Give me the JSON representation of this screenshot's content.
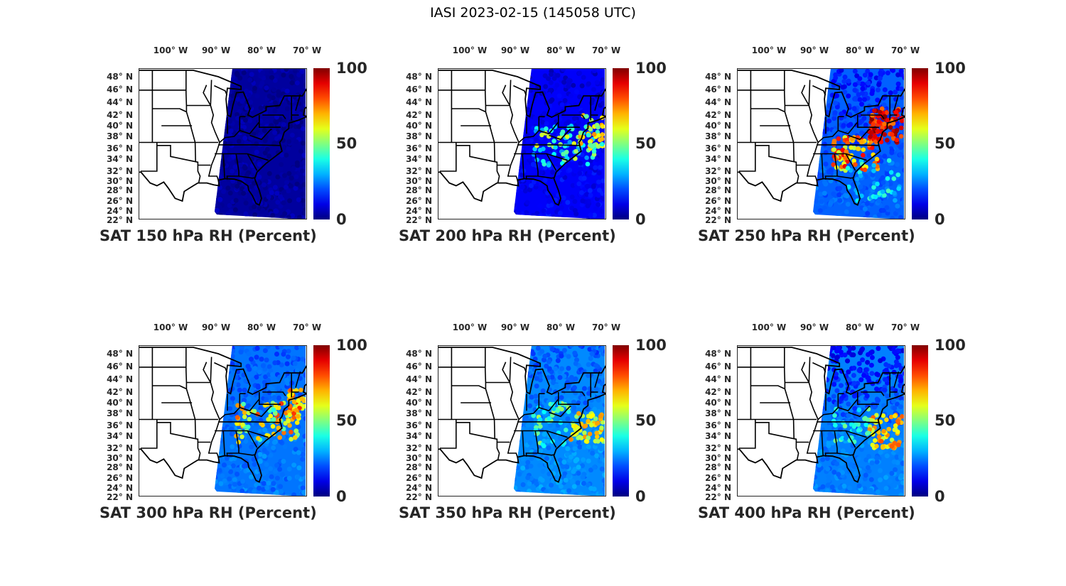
{
  "figure_title": "IASI 2023-02-15 (145058 UTC)",
  "lon_ticks": [
    "100° W",
    "90° W",
    "80° W",
    "70° W"
  ],
  "lon_tick_values": [
    100,
    90,
    80,
    70
  ],
  "lat_ticks": [
    "48° N",
    "46° N",
    "44° N",
    "42° N",
    "40° N",
    "38° N",
    "36° N",
    "34° N",
    "32° N",
    "30° N",
    "28° N",
    "26° N",
    "24° N",
    "22° N"
  ],
  "lat_tick_values": [
    48,
    46,
    44,
    42,
    40,
    38,
    36,
    34,
    32,
    30,
    28,
    26,
    24,
    22
  ],
  "colorbar": {
    "labels": [
      "100",
      "50",
      "0"
    ],
    "range": [
      0,
      100
    ],
    "colormap": "jet"
  },
  "panels": [
    {
      "title": "SAT 150 hPa RH (Percent)",
      "background_rh": 3,
      "north_rh": 3,
      "humid_regions": []
    },
    {
      "title": "SAT 200 hPa RH (Percent)",
      "background_rh": 12,
      "north_rh": 8,
      "humid_regions": [
        {
          "lon": [
            72,
            86
          ],
          "lat": [
            33,
            40
          ],
          "rh": [
            25,
            60
          ],
          "count": 70
        },
        {
          "lon": [
            70.5,
            76
          ],
          "lat": [
            36,
            42
          ],
          "rh": [
            40,
            75
          ],
          "count": 40
        }
      ]
    },
    {
      "title": "SAT 250 hPa RH (Percent)",
      "background_rh": 22,
      "north_rh": 12,
      "humid_regions": [
        {
          "lon": [
            76,
            86
          ],
          "lat": [
            32,
            38
          ],
          "rh": [
            55,
            90
          ],
          "count": 80
        },
        {
          "lon": [
            70.5,
            78
          ],
          "lat": [
            37,
            43
          ],
          "rh": [
            75,
            100
          ],
          "count": 90
        },
        {
          "lon": [
            71,
            83
          ],
          "lat": [
            26,
            34
          ],
          "rh": [
            25,
            45
          ],
          "count": 40
        }
      ]
    },
    {
      "title": "SAT 300 hPa RH (Percent)",
      "background_rh": 24,
      "north_rh": 20,
      "humid_regions": [
        {
          "lon": [
            72,
            86
          ],
          "lat": [
            33,
            40
          ],
          "rh": [
            40,
            85
          ],
          "count": 80
        },
        {
          "lon": [
            70.5,
            74
          ],
          "lat": [
            37,
            43
          ],
          "rh": [
            55,
            85
          ],
          "count": 40
        }
      ]
    },
    {
      "title": "SAT 350 hPa RH (Percent)",
      "background_rh": 26,
      "north_rh": 20,
      "humid_regions": [
        {
          "lon": [
            70.5,
            78
          ],
          "lat": [
            33,
            38
          ],
          "rh": [
            50,
            75
          ],
          "count": 60
        },
        {
          "lon": [
            78,
            86
          ],
          "lat": [
            32,
            40
          ],
          "rh": [
            30,
            55
          ],
          "count": 40
        }
      ]
    },
    {
      "title": "SAT 400 hPa RH (Percent)",
      "background_rh": 25,
      "north_rh": 10,
      "humid_regions": [
        {
          "lon": [
            70.5,
            78
          ],
          "lat": [
            32,
            38
          ],
          "rh": [
            55,
            80
          ],
          "count": 60
        },
        {
          "lon": [
            78,
            86
          ],
          "lat": [
            33,
            39
          ],
          "rh": [
            25,
            50
          ],
          "count": 35
        }
      ]
    }
  ]
}
